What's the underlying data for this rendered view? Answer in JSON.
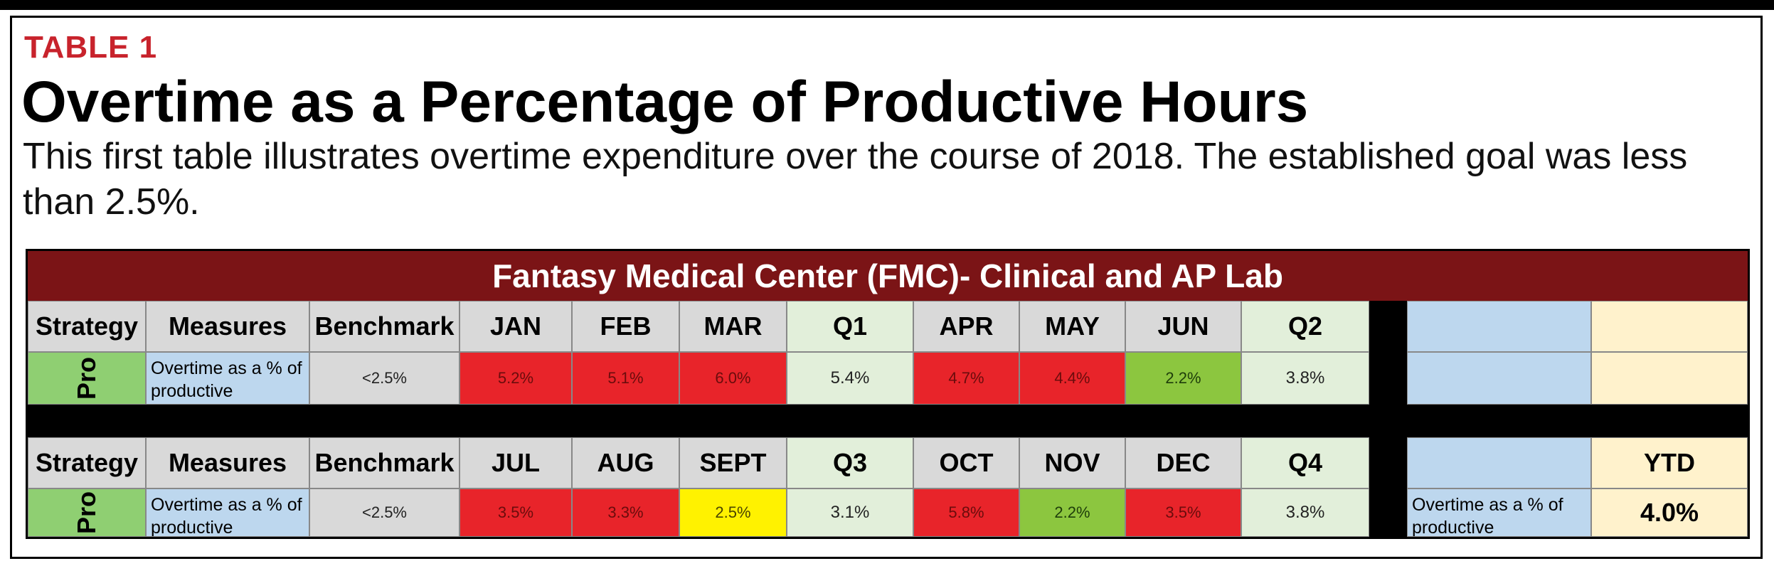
{
  "label": "TABLE 1",
  "title": "Overtime as a Percentage of Productive Hours",
  "subtitle": "This first table illustrates overtime expenditure over the course of 2018. The established goal was less than 2.5%.",
  "table": {
    "heading": "Fantasy Medical Center (FMC)- Clinical and AP Lab",
    "half1": {
      "headers": [
        "Strategy",
        "Measures",
        "Benchmark",
        "JAN",
        "FEB",
        "MAR",
        "Q1",
        "APR",
        "MAY",
        "JUN",
        "Q2"
      ],
      "strategy": "Pro",
      "measure": "Overtime as a % of productive",
      "benchmark": "<2.5%",
      "values": [
        "5.2%",
        "5.1%",
        "6.0%",
        "5.4%",
        "4.7%",
        "4.4%",
        "2.2%",
        "3.8%"
      ],
      "colors": [
        "red",
        "red",
        "red",
        "q",
        "red",
        "red",
        "green",
        "q"
      ]
    },
    "half2": {
      "headers": [
        "Strategy",
        "Measures",
        "Benchmark",
        "JUL",
        "AUG",
        "SEPT",
        "Q3",
        "OCT",
        "NOV",
        "DEC",
        "Q4"
      ],
      "strategy": "Pro",
      "measure": "Overtime as a % of productive",
      "benchmark": "<2.5%",
      "values": [
        "3.5%",
        "3.3%",
        "2.5%",
        "3.1%",
        "5.8%",
        "2.2%",
        "3.5%",
        "3.8%"
      ],
      "colors": [
        "red",
        "red",
        "yellow",
        "q",
        "red",
        "green",
        "red",
        "q"
      ]
    },
    "ytd": {
      "header": "YTD",
      "label": "Overtime as a % of productive",
      "value": "4.0%"
    }
  }
}
